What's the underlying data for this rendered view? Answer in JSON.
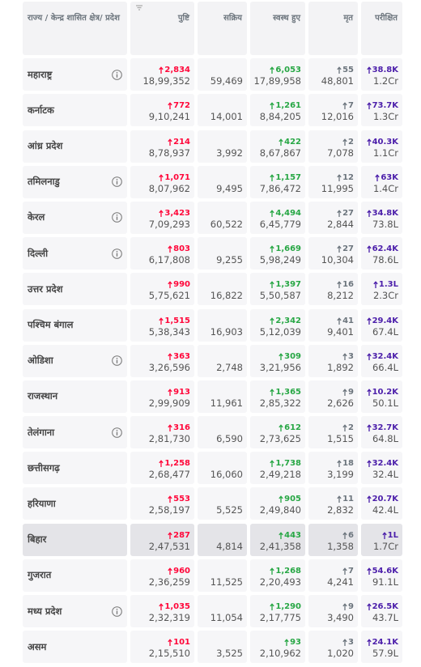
{
  "table": {
    "header": [
      "राज्य / केन्द्र शासित क्षेत्र/ प्रदेश",
      "पुष्टि",
      "सक्रिय",
      "स्वस्थ हुए",
      "मृत",
      "परीक्षित"
    ],
    "rows": [
      {
        "state": "महाराष्ट्र",
        "info": true,
        "confirmed": {
          "delta": "2,834",
          "total": "18,99,352"
        },
        "active": "59,469",
        "recovered": {
          "delta": "6,053",
          "total": "17,89,958"
        },
        "deceased": {
          "delta": "55",
          "total": "48,801"
        },
        "tested": {
          "delta": "38.8K",
          "total": "1.2Cr"
        }
      },
      {
        "state": "कर्नाटक",
        "info": false,
        "confirmed": {
          "delta": "772",
          "total": "9,10,241"
        },
        "active": "14,001",
        "recovered": {
          "delta": "1,261",
          "total": "8,84,205"
        },
        "deceased": {
          "delta": "7",
          "total": "12,016"
        },
        "tested": {
          "delta": "73.7K",
          "total": "1.3Cr"
        }
      },
      {
        "state": "आंध्र प्रदेश",
        "info": false,
        "confirmed": {
          "delta": "214",
          "total": "8,78,937"
        },
        "active": "3,992",
        "recovered": {
          "delta": "422",
          "total": "8,67,867"
        },
        "deceased": {
          "delta": "2",
          "total": "7,078"
        },
        "tested": {
          "delta": "40.3K",
          "total": "1.1Cr"
        }
      },
      {
        "state": "तमिलनाडु",
        "info": true,
        "confirmed": {
          "delta": "1,071",
          "total": "8,07,962"
        },
        "active": "9,495",
        "recovered": {
          "delta": "1,157",
          "total": "7,86,472"
        },
        "deceased": {
          "delta": "12",
          "total": "11,995"
        },
        "tested": {
          "delta": "63K",
          "total": "1.4Cr"
        }
      },
      {
        "state": "केरल",
        "info": true,
        "confirmed": {
          "delta": "3,423",
          "total": "7,09,293"
        },
        "active": "60,522",
        "recovered": {
          "delta": "4,494",
          "total": "6,45,779"
        },
        "deceased": {
          "delta": "27",
          "total": "2,844"
        },
        "tested": {
          "delta": "34.8K",
          "total": "73.8L"
        }
      },
      {
        "state": "दिल्ली",
        "info": true,
        "confirmed": {
          "delta": "803",
          "total": "6,17,808"
        },
        "active": "9,255",
        "recovered": {
          "delta": "1,669",
          "total": "5,98,249"
        },
        "deceased": {
          "delta": "27",
          "total": "10,304"
        },
        "tested": {
          "delta": "62.4K",
          "total": "78.6L"
        }
      },
      {
        "state": "उत्तर प्रदेश",
        "info": false,
        "confirmed": {
          "delta": "990",
          "total": "5,75,621"
        },
        "active": "16,822",
        "recovered": {
          "delta": "1,397",
          "total": "5,50,587"
        },
        "deceased": {
          "delta": "16",
          "total": "8,212"
        },
        "tested": {
          "delta": "1.3L",
          "total": "2.3Cr"
        }
      },
      {
        "state": "पश्चिम बंगाल",
        "info": false,
        "confirmed": {
          "delta": "1,515",
          "total": "5,38,343"
        },
        "active": "16,903",
        "recovered": {
          "delta": "2,342",
          "total": "5,12,039"
        },
        "deceased": {
          "delta": "41",
          "total": "9,401"
        },
        "tested": {
          "delta": "29.4K",
          "total": "67.4L"
        }
      },
      {
        "state": "ओडिशा",
        "info": true,
        "confirmed": {
          "delta": "363",
          "total": "3,26,596"
        },
        "active": "2,748",
        "recovered": {
          "delta": "309",
          "total": "3,21,956"
        },
        "deceased": {
          "delta": "3",
          "total": "1,892"
        },
        "tested": {
          "delta": "32.4K",
          "total": "66.4L"
        }
      },
      {
        "state": "राजस्थान",
        "info": false,
        "confirmed": {
          "delta": "913",
          "total": "2,99,909"
        },
        "active": "11,961",
        "recovered": {
          "delta": "1,365",
          "total": "2,85,322"
        },
        "deceased": {
          "delta": "9",
          "total": "2,626"
        },
        "tested": {
          "delta": "10.2K",
          "total": "50.1L"
        }
      },
      {
        "state": "तेलंगाना",
        "info": true,
        "confirmed": {
          "delta": "316",
          "total": "2,81,730"
        },
        "active": "6,590",
        "recovered": {
          "delta": "612",
          "total": "2,73,625"
        },
        "deceased": {
          "delta": "2",
          "total": "1,515"
        },
        "tested": {
          "delta": "32.7K",
          "total": "64.8L"
        }
      },
      {
        "state": "छत्तीसगढ़",
        "info": false,
        "confirmed": {
          "delta": "1,258",
          "total": "2,68,477"
        },
        "active": "16,060",
        "recovered": {
          "delta": "1,738",
          "total": "2,49,218"
        },
        "deceased": {
          "delta": "18",
          "total": "3,199"
        },
        "tested": {
          "delta": "32.4K",
          "total": "32.4L"
        }
      },
      {
        "state": "हरियाणा",
        "info": false,
        "confirmed": {
          "delta": "553",
          "total": "2,58,197"
        },
        "active": "5,525",
        "recovered": {
          "delta": "905",
          "total": "2,49,840"
        },
        "deceased": {
          "delta": "11",
          "total": "2,832"
        },
        "tested": {
          "delta": "20.7K",
          "total": "42.4L"
        }
      },
      {
        "state": "बिहार",
        "info": false,
        "highlighted": true,
        "confirmed": {
          "delta": "287",
          "total": "2,47,531"
        },
        "active": "4,814",
        "recovered": {
          "delta": "443",
          "total": "2,41,358"
        },
        "deceased": {
          "delta": "6",
          "total": "1,358"
        },
        "tested": {
          "delta": "1L",
          "total": "1.7Cr"
        }
      },
      {
        "state": "गुजरात",
        "info": false,
        "confirmed": {
          "delta": "960",
          "total": "2,36,259"
        },
        "active": "11,525",
        "recovered": {
          "delta": "1,268",
          "total": "2,20,493"
        },
        "deceased": {
          "delta": "7",
          "total": "4,241"
        },
        "tested": {
          "delta": "54.6K",
          "total": "91.1L"
        }
      },
      {
        "state": "मध्य प्रदेश",
        "info": true,
        "confirmed": {
          "delta": "1,035",
          "total": "2,32,319"
        },
        "active": "11,054",
        "recovered": {
          "delta": "1,290",
          "total": "2,17,775"
        },
        "deceased": {
          "delta": "9",
          "total": "3,490"
        },
        "tested": {
          "delta": "26.5K",
          "total": "43.7L"
        }
      },
      {
        "state": "असम",
        "info": false,
        "confirmed": {
          "delta": "101",
          "total": "2,15,510"
        },
        "active": "3,525",
        "recovered": {
          "delta": "93",
          "total": "2,10,962"
        },
        "deceased": {
          "delta": "3",
          "total": "1,020"
        },
        "tested": {
          "delta": "24.1K",
          "total": "57.9L"
        }
      }
    ]
  }
}
